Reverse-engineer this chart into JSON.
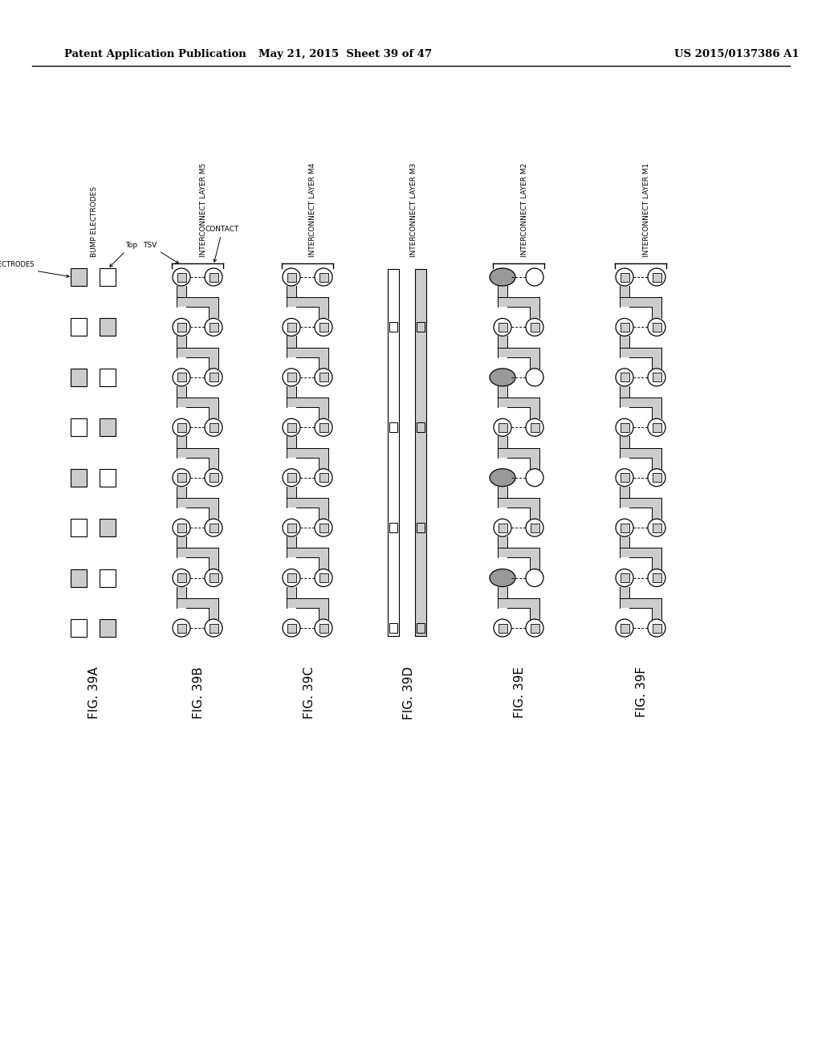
{
  "bg_color": "#ffffff",
  "header_left": "Patent Application Publication",
  "header_mid": "May 21, 2015  Sheet 39 of 47",
  "header_right": "US 2015/0137386 A1",
  "fig_labels": [
    "FIG. 39A",
    "FIG. 39B",
    "FIG. 39C",
    "FIG. 39D",
    "FIG. 39E",
    "FIG. 39F"
  ],
  "panel_labels": [
    "BUMP ELECTRODES",
    "INTERCONNECT LAYER M5",
    "INTERCONNECT LAYER M4",
    "INTERCONNECT LAYER M3",
    "INTERCONNECT LAYER M2",
    "INTERCONNECT LAYER M1"
  ],
  "gray_color": "#aaaaaa",
  "light_gray": "#cccccc",
  "med_gray": "#999999",
  "dark_gray": "#555555"
}
